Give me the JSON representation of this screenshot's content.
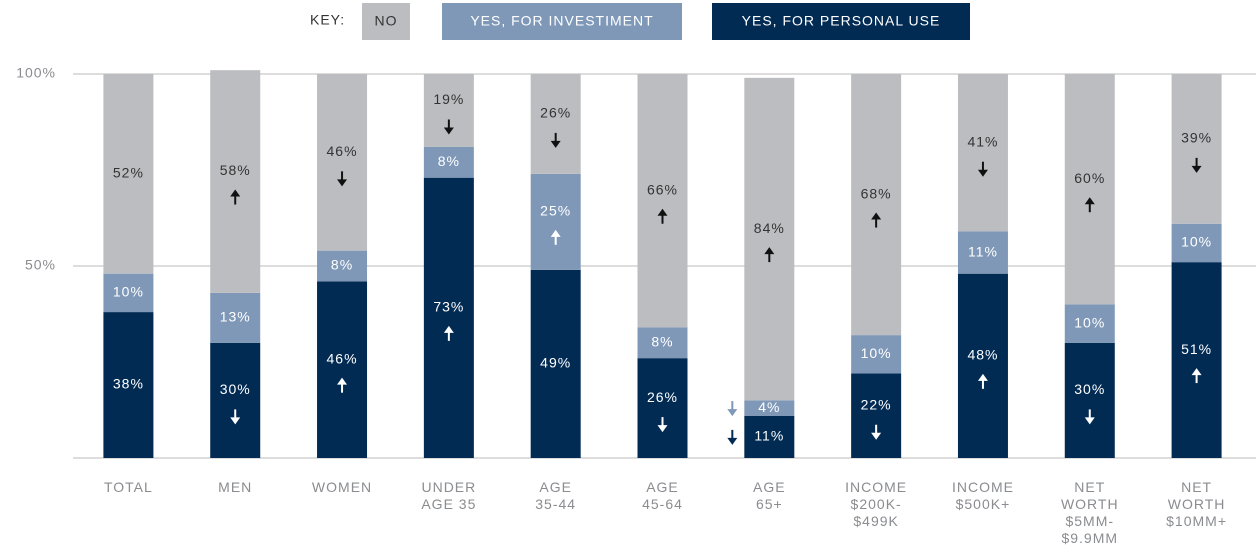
{
  "chart_data": {
    "type": "stacked-bar",
    "legend_title": "KEY:",
    "categories": [
      "TOTAL",
      "MEN",
      "WOMEN",
      "UNDER\nAGE 35",
      "AGE\n35-44",
      "AGE\n45-64",
      "AGE\n65+",
      "INCOME\n$200K-\n$499K",
      "INCOME\n$500K+",
      "NET\nWORTH\n$5MM-\n$9.9MM",
      "NET\nWORTH\n$10MM+"
    ],
    "series": [
      {
        "name": "YES, FOR PERSONAL USE",
        "color": "#022b54",
        "label_color": "#ffffff",
        "values": [
          38,
          30,
          46,
          73,
          49,
          26,
          11,
          22,
          48,
          30,
          51
        ],
        "value_labels": [
          "38%",
          "30%",
          "46%",
          "73%",
          "49%",
          "26%",
          "11%",
          "22%",
          "48%",
          "30%",
          "51%"
        ],
        "trend": [
          null,
          "down",
          "up",
          "up",
          null,
          "down",
          "down",
          "down",
          "up",
          "down",
          "up"
        ]
      },
      {
        "name": "YES, FOR INVESTIMENT",
        "color": "#7f98b8",
        "label_color": "#ffffff",
        "values": [
          10,
          13,
          8,
          8,
          25,
          8,
          4,
          10,
          11,
          10,
          10
        ],
        "value_labels": [
          "10%",
          "13%",
          "8%",
          "8%",
          "25%",
          "8%",
          "4%",
          "10%",
          "11%",
          "10%",
          "10%"
        ],
        "trend": [
          null,
          null,
          null,
          null,
          "up",
          null,
          "down",
          null,
          null,
          null,
          null
        ]
      },
      {
        "name": "NO",
        "color": "#bbbdc1",
        "label_color": "#333333",
        "values": [
          52,
          58,
          46,
          19,
          26,
          66,
          84,
          68,
          41,
          60,
          39
        ],
        "value_labels": [
          "52%",
          "58%",
          "46%",
          "19%",
          "26%",
          "66%",
          "84%",
          "68%",
          "41%",
          "60%",
          "39%"
        ],
        "trend": [
          null,
          "up",
          "down",
          "down",
          "down",
          "up",
          "up",
          "up",
          "down",
          "up",
          "down"
        ]
      }
    ],
    "legend_order": [
      2,
      1,
      0
    ],
    "ylim": [
      0,
      100
    ],
    "yticks": [
      {
        "value": 50,
        "label": "50%"
      },
      {
        "value": 100,
        "label": "100%"
      }
    ],
    "grid": true
  }
}
